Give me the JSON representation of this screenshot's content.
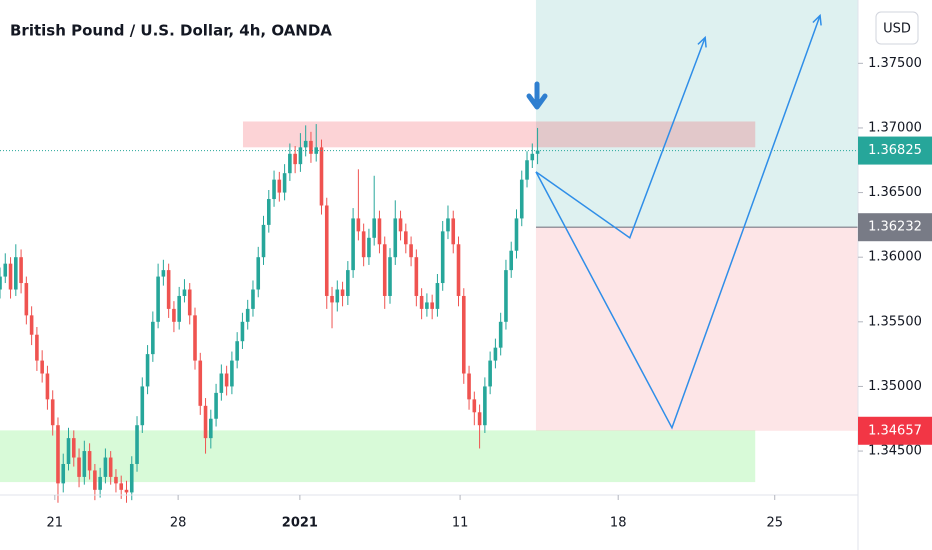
{
  "chart_data": {
    "type": "candlestick",
    "title": "British Pound / U.S. Dollar, 4h, OANDA",
    "currency": "USD",
    "up_color": "#26a69a",
    "down_color": "#ef5350",
    "x": [
      0,
      1,
      2,
      3,
      4,
      5,
      6,
      7,
      8,
      9,
      10,
      11,
      12,
      13,
      14,
      15,
      16,
      17,
      18,
      19,
      20,
      21,
      22,
      23,
      24,
      25,
      26,
      27,
      28,
      29,
      30,
      31,
      32,
      33,
      34,
      35,
      36,
      37,
      38,
      39,
      40,
      41,
      42,
      43,
      44,
      45,
      46,
      47,
      48,
      49,
      50,
      51,
      52,
      53,
      54,
      55,
      56,
      57,
      58,
      59,
      60,
      61,
      62,
      63,
      64,
      65,
      66,
      67,
      68,
      69,
      70,
      71,
      72,
      73,
      74,
      75,
      76,
      77,
      78,
      79,
      80,
      81,
      82,
      83,
      84,
      85,
      86,
      87,
      88,
      89,
      90,
      91,
      92,
      93,
      94,
      95,
      96,
      97,
      98,
      99,
      100,
      101,
      102
    ],
    "open": [
      1.3575,
      1.3585,
      1.3595,
      1.3575,
      1.36,
      1.358,
      1.3555,
      1.354,
      1.352,
      1.351,
      1.349,
      1.347,
      1.3425,
      1.344,
      1.346,
      1.3445,
      1.343,
      1.345,
      1.3435,
      1.342,
      1.343,
      1.3445,
      1.343,
      1.3425,
      1.342,
      1.3418,
      1.344,
      1.347,
      1.35,
      1.3525,
      1.355,
      1.3585,
      1.359,
      1.356,
      1.355,
      1.357,
      1.3575,
      1.3555,
      1.352,
      1.3485,
      1.346,
      1.3475,
      1.3495,
      1.351,
      1.35,
      1.352,
      1.3535,
      1.355,
      1.356,
      1.3575,
      1.36,
      1.3625,
      1.3645,
      1.366,
      1.365,
      1.3665,
      1.368,
      1.3672,
      1.3685,
      1.369,
      1.368,
      1.3685,
      1.364,
      1.357,
      1.3565,
      1.3575,
      1.357,
      1.359,
      1.363,
      1.362,
      1.36,
      1.3615,
      1.363,
      1.361,
      1.357,
      1.36,
      1.363,
      1.362,
      1.361,
      1.36,
      1.357,
      1.356,
      1.3565,
      1.356,
      1.358,
      1.362,
      1.363,
      1.361,
      1.357,
      1.351,
      1.349,
      1.348,
      1.347,
      1.35,
      1.352,
      1.353,
      1.355,
      1.359,
      1.3605,
      1.363,
      1.366,
      1.3675,
      1.368
    ],
    "high": [
      1.3592,
      1.3603,
      1.36,
      1.361,
      1.3606,
      1.3585,
      1.3562,
      1.3546,
      1.3528,
      1.3516,
      1.3497,
      1.3476,
      1.3448,
      1.3468,
      1.3466,
      1.3452,
      1.3458,
      1.3456,
      1.344,
      1.3437,
      1.3452,
      1.345,
      1.3436,
      1.3431,
      1.3427,
      1.3446,
      1.3477,
      1.3507,
      1.3532,
      1.3558,
      1.3595,
      1.3598,
      1.3595,
      1.3566,
      1.3577,
      1.3583,
      1.358,
      1.3561,
      1.3526,
      1.3491,
      1.3482,
      1.3502,
      1.3517,
      1.3516,
      1.3527,
      1.3542,
      1.3557,
      1.3567,
      1.3582,
      1.3608,
      1.3632,
      1.3652,
      1.3667,
      1.3666,
      1.3672,
      1.3688,
      1.3686,
      1.3696,
      1.3702,
      1.3697,
      1.3703,
      1.3691,
      1.3646,
      1.3577,
      1.3582,
      1.3581,
      1.3597,
      1.3638,
      1.3668,
      1.3626,
      1.3622,
      1.3663,
      1.3636,
      1.3616,
      1.3607,
      1.3644,
      1.3636,
      1.3626,
      1.3616,
      1.3606,
      1.3576,
      1.3572,
      1.3571,
      1.3587,
      1.3628,
      1.364,
      1.3636,
      1.3616,
      1.3576,
      1.3516,
      1.3496,
      1.3486,
      1.3507,
      1.3527,
      1.3537,
      1.3557,
      1.3598,
      1.3612,
      1.3637,
      1.3667,
      1.3682,
      1.3688,
      1.37
    ],
    "low": [
      1.3568,
      1.358,
      1.3568,
      1.357,
      1.3572,
      1.3548,
      1.3532,
      1.3512,
      1.3503,
      1.3482,
      1.3462,
      1.341,
      1.3418,
      1.3435,
      1.3438,
      1.3422,
      1.3424,
      1.3428,
      1.3412,
      1.3414,
      1.3425,
      1.3424,
      1.3418,
      1.3413,
      1.341,
      1.3412,
      1.3434,
      1.3464,
      1.3494,
      1.3519,
      1.3545,
      1.3578,
      1.3553,
      1.3542,
      1.3544,
      1.3565,
      1.3548,
      1.3513,
      1.3478,
      1.3448,
      1.3452,
      1.3469,
      1.3489,
      1.3493,
      1.3494,
      1.3514,
      1.3529,
      1.3544,
      1.3554,
      1.3569,
      1.3594,
      1.3619,
      1.3639,
      1.3643,
      1.3644,
      1.3659,
      1.3665,
      1.3666,
      1.3678,
      1.3673,
      1.3674,
      1.3633,
      1.356,
      1.3545,
      1.3558,
      1.3562,
      1.3563,
      1.3584,
      1.3613,
      1.3593,
      1.3594,
      1.3609,
      1.3603,
      1.356,
      1.3564,
      1.3594,
      1.3613,
      1.3603,
      1.3593,
      1.3562,
      1.3552,
      1.3554,
      1.3552,
      1.3554,
      1.3574,
      1.3614,
      1.3603,
      1.3562,
      1.3502,
      1.3482,
      1.347,
      1.3452,
      1.3464,
      1.3494,
      1.3514,
      1.3524,
      1.3544,
      1.3584,
      1.3599,
      1.3624,
      1.3654,
      1.3669,
      1.3672
    ],
    "close": [
      1.3585,
      1.3595,
      1.3575,
      1.36,
      1.358,
      1.3555,
      1.354,
      1.352,
      1.351,
      1.349,
      1.347,
      1.3425,
      1.344,
      1.346,
      1.3445,
      1.343,
      1.345,
      1.3435,
      1.342,
      1.343,
      1.3445,
      1.343,
      1.3425,
      1.342,
      1.3418,
      1.344,
      1.347,
      1.35,
      1.3525,
      1.355,
      1.3585,
      1.359,
      1.356,
      1.355,
      1.357,
      1.3575,
      1.3555,
      1.352,
      1.3485,
      1.346,
      1.3475,
      1.3495,
      1.351,
      1.35,
      1.352,
      1.3535,
      1.355,
      1.356,
      1.3575,
      1.36,
      1.3625,
      1.3645,
      1.366,
      1.365,
      1.3665,
      1.368,
      1.3672,
      1.3685,
      1.369,
      1.368,
      1.3685,
      1.364,
      1.357,
      1.3565,
      1.3575,
      1.357,
      1.359,
      1.363,
      1.362,
      1.36,
      1.3615,
      1.363,
      1.361,
      1.357,
      1.36,
      1.363,
      1.362,
      1.361,
      1.36,
      1.357,
      1.356,
      1.3565,
      1.356,
      1.358,
      1.362,
      1.363,
      1.361,
      1.357,
      1.351,
      1.349,
      1.348,
      1.347,
      1.35,
      1.352,
      1.353,
      1.355,
      1.359,
      1.3605,
      1.363,
      1.366,
      1.3675,
      1.368,
      1.36825
    ],
    "xlim": [
      0,
      162.8
    ],
    "xticks": [
      {
        "value": 10.4,
        "label": "21"
      },
      {
        "value": 33.8,
        "label": "28"
      },
      {
        "value": 56.9,
        "label": "2021"
      },
      {
        "value": 87.3,
        "label": "11"
      },
      {
        "value": 117.3,
        "label": "18"
      },
      {
        "value": 147,
        "label": "25"
      }
    ],
    "ylim": [
      1.3416,
      1.3799
    ],
    "yticks": [
      {
        "value": 1.345,
        "label": "1.34500"
      },
      {
        "value": 1.35,
        "label": "1.35000"
      },
      {
        "value": 1.355,
        "label": "1.35500"
      },
      {
        "value": 1.36,
        "label": "1.36000"
      },
      {
        "value": 1.365,
        "label": "1.36500"
      },
      {
        "value": 1.37,
        "label": "1.37000"
      },
      {
        "value": 1.375,
        "label": "1.37500"
      }
    ],
    "price_labels": [
      {
        "value": 1.36825,
        "color": "#26a69a"
      },
      {
        "value": 1.36232,
        "color": "#787b86"
      },
      {
        "value": 1.34657,
        "color": "#f23645"
      }
    ],
    "zones": [
      {
        "x": [
          46.1,
          143.3
        ],
        "y": [
          1.3685,
          1.3705
        ],
        "color": "rgba(242,54,69,0.22)"
      },
      {
        "x": [
          0,
          143.3
        ],
        "y": [
          1.3426,
          1.3466
        ],
        "color": "rgba(76,230,76,0.22)"
      }
    ],
    "position": {
      "x": [
        101.7,
        162.8
      ],
      "entry": 1.36232,
      "target": 1.3799,
      "stop": 1.34657,
      "profit_color": "rgba(0,150,136,0.13)",
      "loss_color": "rgba(242,54,69,0.13)"
    },
    "arrows": [
      {
        "color": "#2f8ee8",
        "points": [
          [
            101.7,
            1.3666
          ],
          [
            119.5,
            1.3615
          ],
          [
            133.8,
            1.377
          ]
        ]
      },
      {
        "color": "#2f8ee8",
        "points": [
          [
            101.7,
            1.3666
          ],
          [
            127.5,
            1.3468
          ],
          [
            155.6,
            1.3787
          ]
        ]
      }
    ]
  }
}
